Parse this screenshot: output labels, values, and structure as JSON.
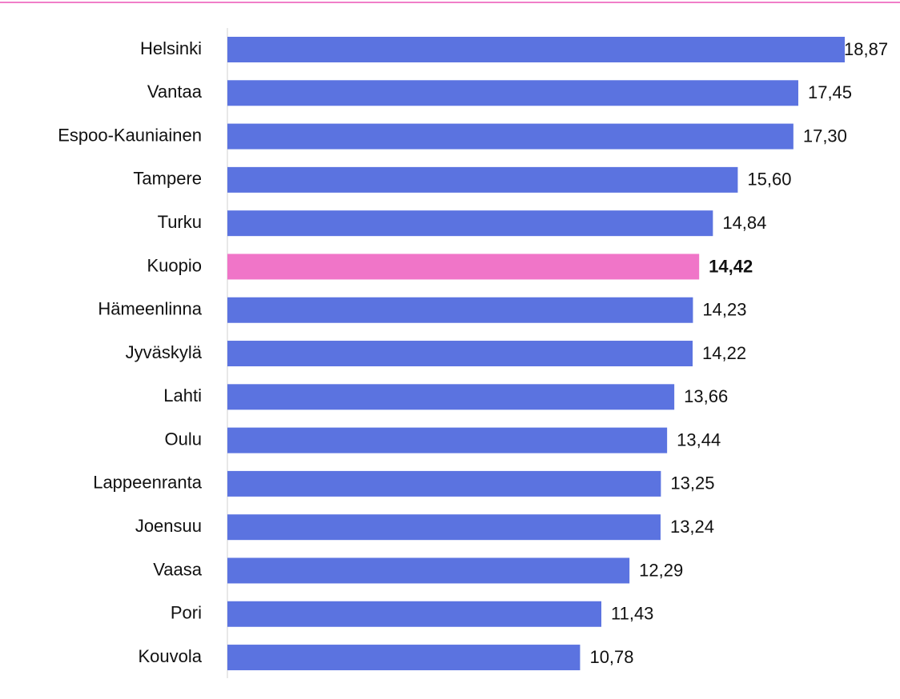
{
  "chart_data": {
    "type": "hbar",
    "categories": [
      "Helsinki",
      "Vantaa",
      "Espoo-Kauniainen",
      "Tampere",
      "Turku",
      "Kuopio",
      "Hämeenlinna",
      "Jyväskylä",
      "Lahti",
      "Oulu",
      "Lappeenranta",
      "Joensuu",
      "Vaasa",
      "Pori",
      "Kouvola"
    ],
    "values": [
      18.87,
      17.45,
      17.3,
      15.6,
      14.84,
      14.42,
      14.23,
      14.22,
      13.66,
      13.44,
      13.25,
      13.24,
      12.29,
      11.43,
      10.78
    ],
    "value_labels": [
      "18,87",
      "17,45",
      "17,30",
      "15,60",
      "14,84",
      "14,42",
      "14,23",
      "14,22",
      "13,66",
      "13,44",
      "13,25",
      "13,24",
      "12,29",
      "11,43",
      "10,78"
    ],
    "color": "#5b73e0",
    "highlight": "Kuopio",
    "highlight_color": "#f075c8",
    "xlim": [
      0,
      18.87
    ]
  }
}
